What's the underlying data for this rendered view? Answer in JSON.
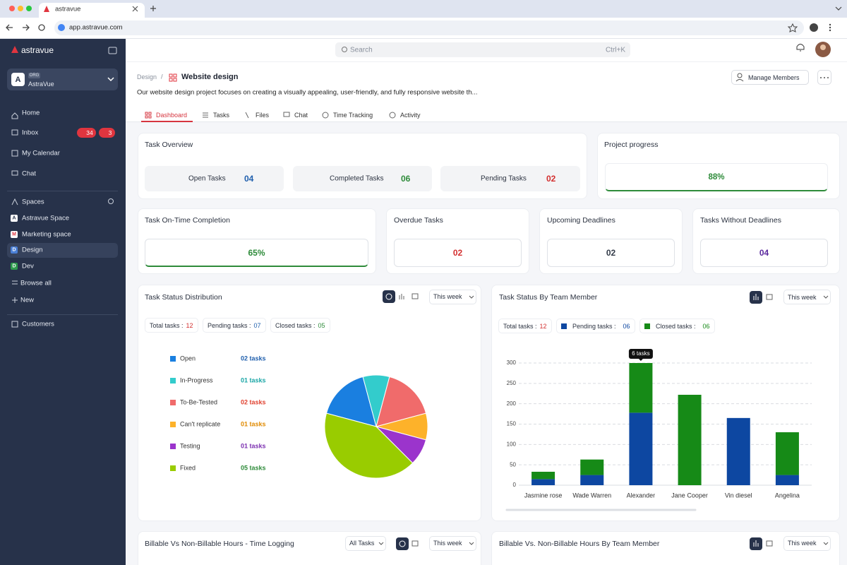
{
  "browser": {
    "tab_title": "astravue",
    "url": "app.astravue.com"
  },
  "sidebar": {
    "brand": "astravue",
    "org": {
      "initial": "A",
      "badge": "ORG",
      "name": "AstraVue"
    },
    "nav": [
      "Home",
      "Inbox",
      "My Calendar",
      "Chat"
    ],
    "inbox_badges": [
      "34",
      "3"
    ],
    "spaces_title": "Spaces",
    "spaces": [
      {
        "initial": "A",
        "name": "Astravue Space",
        "color": "#ffffff"
      },
      {
        "initial": "M",
        "name": "Marketing space",
        "color": "#ffffff"
      },
      {
        "initial": "D",
        "name": "Design",
        "color": "#4a7fd6"
      },
      {
        "initial": "D",
        "name": "Dev",
        "color": "#2e9b4e"
      }
    ],
    "browse_all": "Browse all",
    "new": "New",
    "customers": "Customers"
  },
  "topbar": {
    "search": "Search",
    "shortcut": "Ctrl+K"
  },
  "header": {
    "breadcrumb": "Design",
    "separator": "/",
    "title": "Website design",
    "manage": "Manage Members",
    "description": "Our website design project focuses on creating a visually appealing, user-friendly, and fully responsive website th..."
  },
  "tabs": [
    "Dashboard",
    "Tasks",
    "Files",
    "Chat",
    "Time Tracking",
    "Activity"
  ],
  "overview": {
    "title": "Task Overview",
    "items": [
      {
        "label": "Open Tasks",
        "value": "04",
        "color": "#1f5fad"
      },
      {
        "label": "Completed Tasks",
        "value": "06",
        "color": "#2e8b3a"
      },
      {
        "label": "Pending Tasks",
        "value": "02",
        "color": "#d32f2f"
      }
    ]
  },
  "progress": {
    "title": "Project progress",
    "value": "88%",
    "color": "#2e8b3a"
  },
  "metrics": [
    {
      "title": "Task On-Time Completion",
      "value": "65%",
      "color": "#2e8b3a"
    },
    {
      "title": "Overdue Tasks",
      "value": "02",
      "color": "#d32f2f"
    },
    {
      "title": "Upcoming Deadlines",
      "value": "02",
      "color": "#333b48"
    },
    {
      "title": "Tasks Without Deadlines",
      "value": "04",
      "color": "#5b2a9e"
    }
  ],
  "chart_data": [
    {
      "type": "pie",
      "title": "Task Status Distribution",
      "period": "This week",
      "summary": [
        {
          "label": "Total tasks :",
          "value": "12",
          "color": "#d32f2f"
        },
        {
          "label": "Pending tasks :",
          "value": "07",
          "color": "#1f5fad"
        },
        {
          "label": "Closed tasks :",
          "value": "05",
          "color": "#2e8b3a"
        }
      ],
      "categories": [
        "Open",
        "In-Progress",
        "To-Be-Tested",
        "Can't replicate",
        "Testing",
        "Fixed"
      ],
      "values": [
        2,
        1,
        2,
        1,
        1,
        5
      ],
      "value_labels": [
        "02 tasks",
        "01 tasks",
        "02 tasks",
        "01 tasks",
        "01 tasks",
        "05 tasks"
      ],
      "colors": [
        "#1a7fe0",
        "#33cccc",
        "#f06b6b",
        "#fdb22a",
        "#9b34cc",
        "#99cc00"
      ],
      "label_colors": [
        "#1f5fad",
        "#1aa6a6",
        "#e0412f",
        "#e08a00",
        "#7b2fb0",
        "#2e8b3a"
      ]
    },
    {
      "type": "stacked-bar",
      "title": "Task Status By Team Member",
      "period": "This week",
      "total": {
        "label": "Total tasks :",
        "value": "12"
      },
      "categories": [
        "Jasmine rose",
        "Wade Warren",
        "Alexander",
        "Jane Cooper",
        "Vin diesel",
        "Angelina"
      ],
      "series": [
        {
          "name": "Pending tasks :",
          "total": "06",
          "color": "#0d47a1",
          "values": [
            15,
            25,
            178,
            0,
            165,
            25
          ]
        },
        {
          "name": "Closed tasks :",
          "total": "06",
          "color": "#168a17",
          "values": [
            18,
            38,
            122,
            222,
            0,
            105
          ]
        }
      ],
      "ylim": [
        0,
        300
      ],
      "yticks": [
        0,
        50,
        100,
        150,
        200,
        250,
        300
      ],
      "grid": true,
      "annotation": "6 tasks"
    }
  ],
  "bottom": [
    {
      "title": "Billable Vs Non-Billable Hours - Time Logging",
      "filter": "All Tasks",
      "period": "This week"
    },
    {
      "title": "Billable Vs. Non-Billable Hours By Team Member",
      "period": "This week"
    }
  ]
}
